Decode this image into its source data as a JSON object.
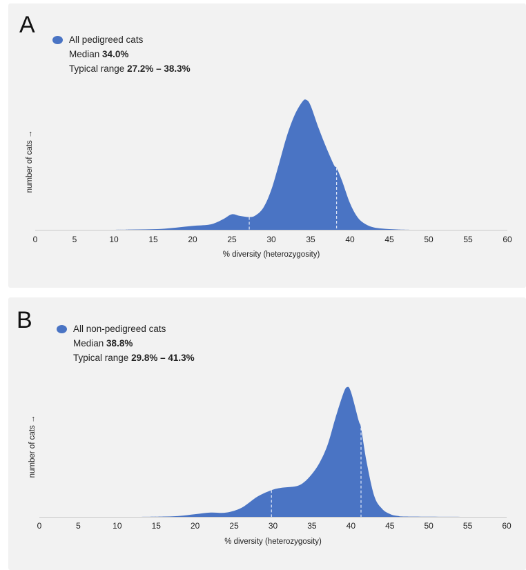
{
  "panels": [
    {
      "letter": "A",
      "legend_label": "All pedigreed cats",
      "median_label": "Median",
      "median_value": "34.0%",
      "range_label": "Typical range",
      "range_value": "27.2% – 38.3%",
      "color": "#4a74c4"
    },
    {
      "letter": "B",
      "legend_label": "All non-pedigreed cats",
      "median_label": "Median",
      "median_value": "38.8%",
      "range_label": "Typical range",
      "range_value": "29.8% – 41.3%",
      "color": "#4a74c4"
    }
  ],
  "chart_data": [
    {
      "type": "area",
      "series": [
        {
          "name": "All pedigreed cats",
          "x": [
            0,
            10,
            12,
            14,
            16,
            18,
            20,
            22,
            23,
            24,
            25,
            26,
            27.2,
            28,
            29,
            30,
            31,
            32,
            33,
            34,
            34.5,
            35,
            36,
            37,
            38,
            38.3,
            39,
            40,
            41,
            42,
            43,
            44,
            45,
            46,
            47,
            50,
            60
          ],
          "y": [
            0,
            0,
            0.2,
            0.4,
            0.8,
            2.0,
            3.5,
            4.5,
            6.5,
            10,
            14,
            12.5,
            11.5,
            13,
            20,
            36,
            60,
            85,
            104,
            116,
            117,
            112,
            92,
            74,
            58,
            56,
            44,
            24,
            11,
            5,
            2.2,
            1.2,
            0.6,
            0.3,
            0.1,
            0,
            0
          ]
        }
      ],
      "markers": [
        27.2,
        38.3
      ],
      "xlim": [
        0,
        60
      ],
      "xticks": [
        0,
        5,
        10,
        15,
        20,
        25,
        30,
        35,
        40,
        45,
        50,
        55,
        60
      ],
      "xlabel": "% diversity (heterozygosity)",
      "ylabel": "number of cats →"
    },
    {
      "type": "area",
      "series": [
        {
          "name": "All non-pedigreed cats",
          "x": [
            0,
            10,
            14,
            16,
            18,
            20,
            22,
            24,
            26,
            28,
            29.8,
            31,
            33,
            34,
            35,
            36,
            37,
            38,
            39,
            39.5,
            40,
            41,
            41.3,
            42,
            43,
            44,
            45,
            46,
            48,
            60
          ],
          "y": [
            0,
            0,
            0.1,
            0.3,
            0.8,
            2.3,
            3.7,
            3.7,
            8,
            17.5,
            23,
            25,
            26.5,
            30,
            37,
            47,
            62,
            85,
            106,
            112,
            108,
            83,
            77,
            48,
            18,
            7,
            2.5,
            0.8,
            0.2,
            0
          ]
        }
      ],
      "markers": [
        29.8,
        41.3
      ],
      "xlim": [
        0,
        60
      ],
      "xticks": [
        0,
        5,
        10,
        15,
        20,
        25,
        30,
        35,
        40,
        45,
        50,
        55,
        60
      ],
      "xlabel": "% diversity (heterozygosity)",
      "ylabel": "number of cats →"
    }
  ]
}
